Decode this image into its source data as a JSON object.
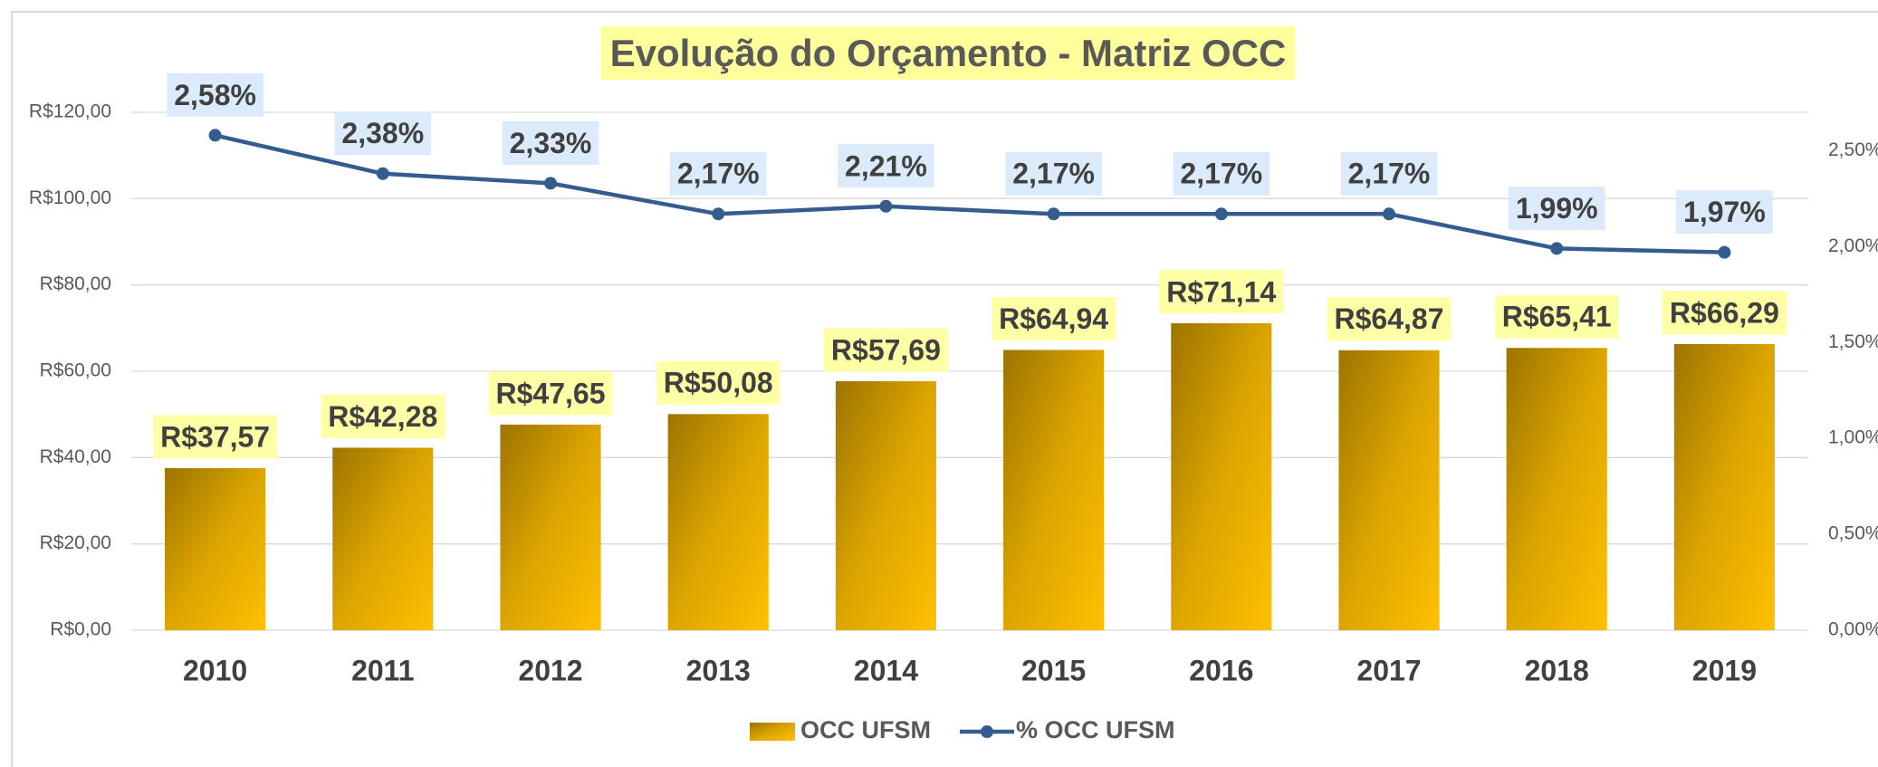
{
  "chart_data": {
    "type": "bar",
    "title": "Evolução do Orçamento - Matriz OCC",
    "categories": [
      "2010",
      "2011",
      "2012",
      "2013",
      "2014",
      "2015",
      "2016",
      "2017",
      "2018",
      "2019"
    ],
    "series": [
      {
        "name": "OCC UFSM",
        "type": "bar",
        "axis": "y",
        "color": "#e6ac00",
        "values": [
          37.57,
          42.28,
          47.65,
          50.08,
          57.69,
          64.94,
          71.14,
          64.87,
          65.41,
          66.29
        ],
        "value_labels": [
          "R$37,57",
          "R$42,28",
          "R$47,65",
          "R$50,08",
          "R$57,69",
          "R$64,94",
          "R$71,14",
          "R$64,87",
          "R$65,41",
          "R$66,29"
        ]
      },
      {
        "name": "% OCC UFSM",
        "type": "line",
        "axis": "y2",
        "color": "#335c8f",
        "values": [
          2.58,
          2.38,
          2.33,
          2.17,
          2.21,
          2.17,
          2.17,
          2.17,
          1.99,
          1.97
        ],
        "value_labels": [
          "2,58%",
          "2,38%",
          "2,33%",
          "2,17%",
          "2,21%",
          "2,17%",
          "2,17%",
          "2,17%",
          "1,99%",
          "1,97%"
        ]
      }
    ],
    "ylim": [
      0,
      120
    ],
    "yticks": [
      {
        "value": 0,
        "label": "R$0,00"
      },
      {
        "value": 20,
        "label": "R$20,00"
      },
      {
        "value": 40,
        "label": "R$40,00"
      },
      {
        "value": 60,
        "label": "R$60,00"
      },
      {
        "value": 80,
        "label": "R$80,00"
      },
      {
        "value": 100,
        "label": "R$100,00"
      },
      {
        "value": 120,
        "label": "R$120,00"
      }
    ],
    "y2lim": [
      0,
      2.7
    ],
    "y2ticks": [
      {
        "value": 0,
        "label": "0,00%"
      },
      {
        "value": 0.5,
        "label": "0,50%"
      },
      {
        "value": 1,
        "label": "1,00%"
      },
      {
        "value": 1.5,
        "label": "1,50%"
      },
      {
        "value": 2,
        "label": "2,00%"
      },
      {
        "value": 2.5,
        "label": "2,50%"
      }
    ],
    "grid": true,
    "legend": "bottom"
  }
}
